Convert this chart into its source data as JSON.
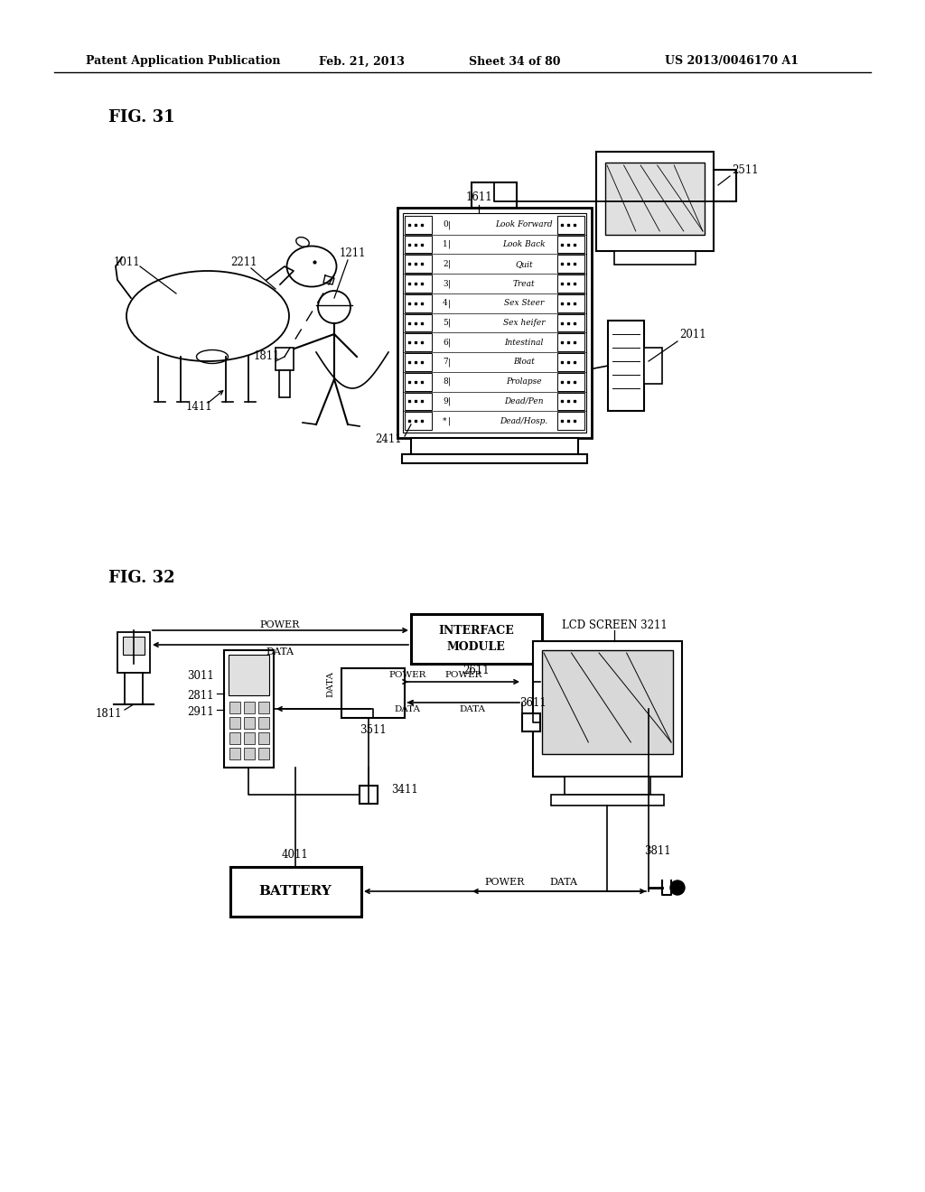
{
  "bg_color": "#ffffff",
  "header_text": "Patent Application Publication",
  "header_date": "Feb. 21, 2013",
  "header_sheet": "Sheet 34 of 80",
  "header_patent": "US 2013/0046170 A1",
  "fig31_label": "FIG. 31",
  "fig32_label": "FIG. 32",
  "menu_items": [
    [
      "0",
      "Look Forward"
    ],
    [
      "1",
      "Look Back"
    ],
    [
      "2",
      "Quit"
    ],
    [
      "3",
      "Treat"
    ],
    [
      "4",
      "Sex Steer"
    ],
    [
      "5",
      "Sex heifer"
    ],
    [
      "6",
      "Intestinal"
    ],
    [
      "7",
      "Bloat"
    ],
    [
      "8",
      "Prolapse"
    ],
    [
      "9",
      "Dead/Pen"
    ],
    [
      "*",
      "Dead/Hosp."
    ]
  ]
}
